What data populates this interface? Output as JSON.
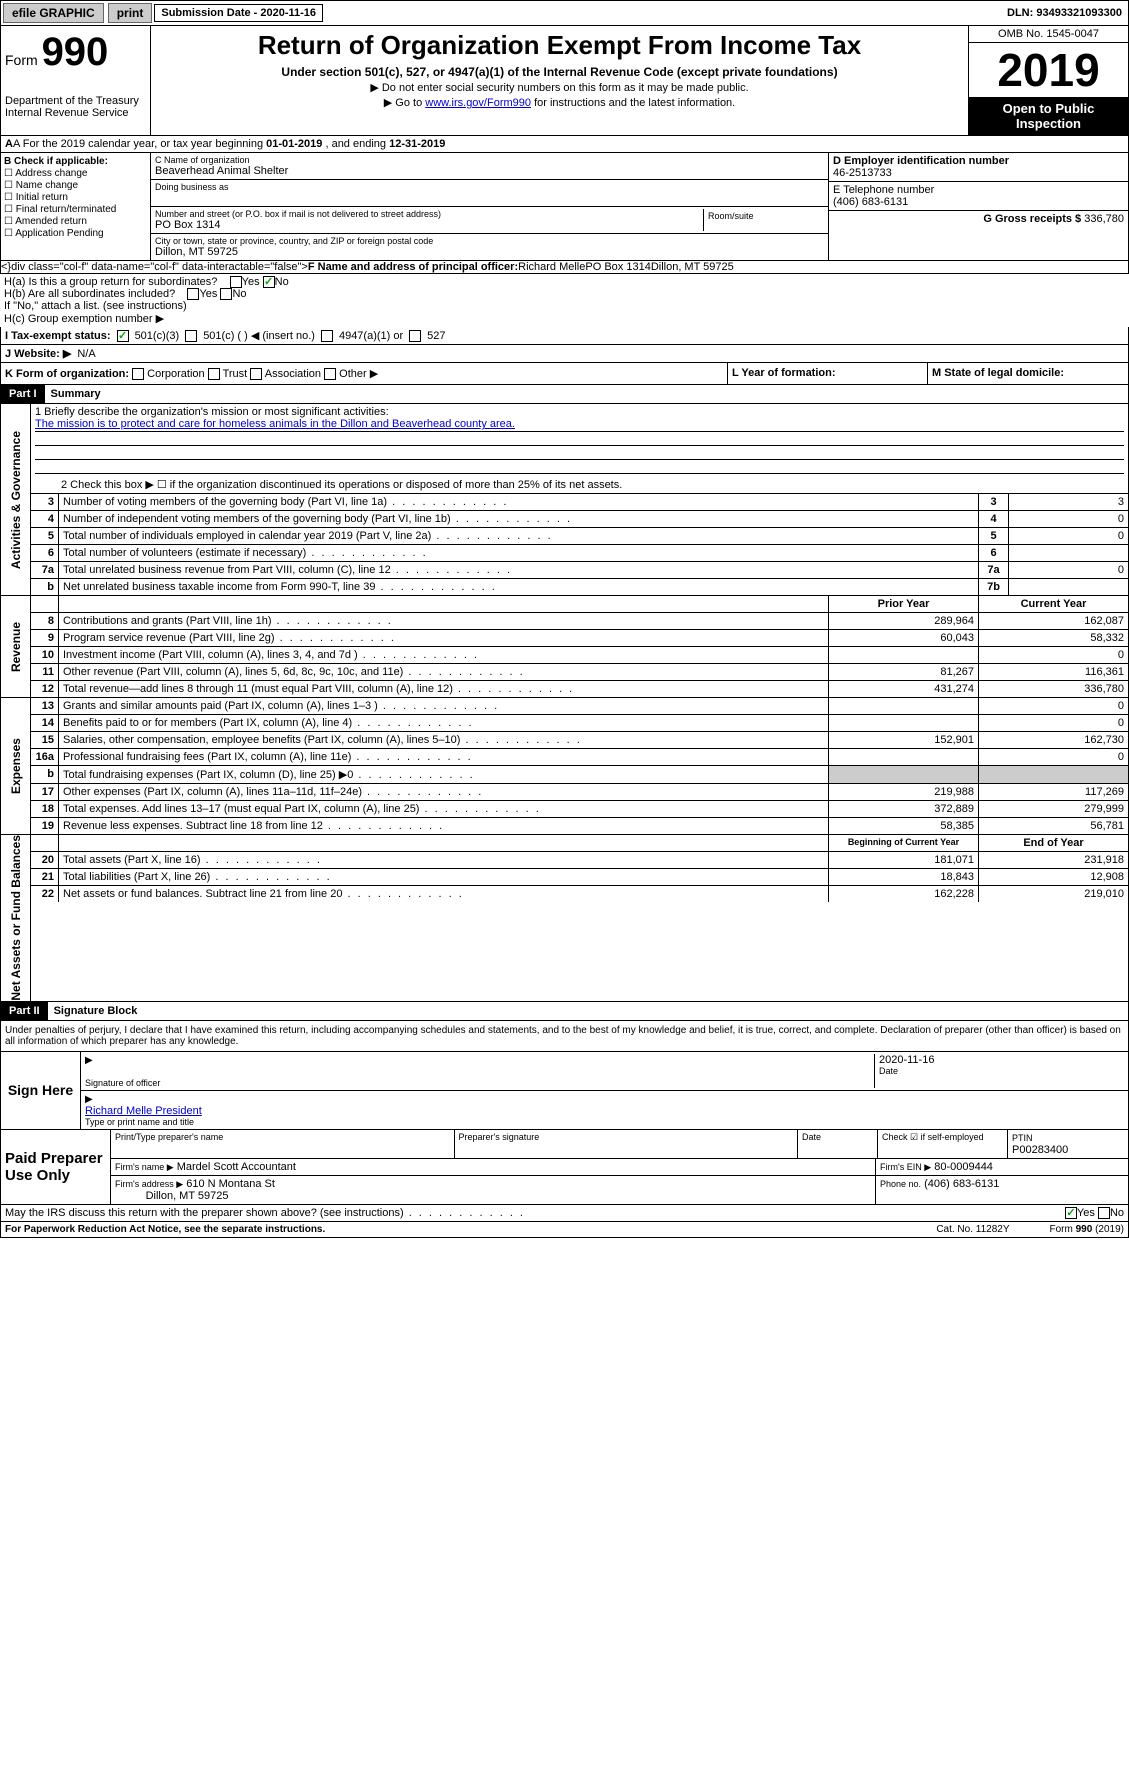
{
  "topbar": {
    "efile": "efile GRAPHIC",
    "print": "print",
    "sub_label": "Submission Date - 2020-11-16",
    "dln": "DLN: 93493321093300"
  },
  "header": {
    "form": "Form",
    "form_num": "990",
    "dept": "Department of the Treasury\nInternal Revenue Service",
    "title": "Return of Organization Exempt From Income Tax",
    "subtitle": "Under section 501(c), 527, or 4947(a)(1) of the Internal Revenue Code (except private foundations)",
    "note1": "▶ Do not enter social security numbers on this form as it may be made public.",
    "note2_a": "▶ Go to ",
    "note2_link": "www.irs.gov/Form990",
    "note2_b": " for instructions and the latest information.",
    "omb": "OMB No. 1545-0047",
    "year": "2019",
    "open": "Open to Public Inspection"
  },
  "row_a": {
    "text_a": "A For the 2019 calendar year, or tax year beginning ",
    "begin": "01-01-2019",
    "text_b": " , and ending ",
    "end": "12-31-2019"
  },
  "col_b": {
    "label": "B Check if applicable:",
    "items": [
      "Address change",
      "Name change",
      "Initial return",
      "Final return/terminated",
      "Amended return",
      "Application Pending"
    ]
  },
  "col_c": {
    "name_label": "C Name of organization",
    "name": "Beaverhead Animal Shelter",
    "dba_label": "Doing business as",
    "addr_label": "Number and street (or P.O. box if mail is not delivered to street address)",
    "addr": "PO Box 1314",
    "room_label": "Room/suite",
    "city_label": "City or town, state or province, country, and ZIP or foreign postal code",
    "city": "Dillon, MT  59725"
  },
  "col_d": {
    "ein_label": "D Employer identification number",
    "ein": "46-2513733",
    "phone_label": "E Telephone number",
    "phone": "(406) 683-6131",
    "gross_label": "G Gross receipts $ ",
    "gross": "336,780"
  },
  "col_f": {
    "label": "F Name and address of principal officer:",
    "name": "Richard Melle",
    "addr1": "PO Box 1314",
    "addr2": "Dillon, MT  59725"
  },
  "col_h": {
    "ha": "H(a) Is this a group return for subordinates?",
    "hb": "H(b) Are all subordinates included?",
    "hb_note": "If \"No,\" attach a list. (see instructions)",
    "hc": "H(c) Group exemption number ▶"
  },
  "row_i": {
    "label": "I Tax-exempt status:",
    "opts": [
      "501(c)(3)",
      "501(c) ( ) ◀ (insert no.)",
      "4947(a)(1) or",
      "527"
    ]
  },
  "row_j": {
    "label": "J Website: ▶",
    "val": "N/A"
  },
  "row_k": {
    "k": "K Form of organization:",
    "k_opts": [
      "Corporation",
      "Trust",
      "Association",
      "Other ▶"
    ],
    "l": "L Year of formation:",
    "m": "M State of legal domicile:"
  },
  "part1": {
    "hdr": "Part I",
    "title": "Summary",
    "sections": {
      "gov": "Activities & Governance",
      "rev": "Revenue",
      "exp": "Expenses",
      "net": "Net Assets or Fund Balances"
    },
    "q1_label": "1 Briefly describe the organization's mission or most significant activities:",
    "q1_val": "The mission is to protect and care for homeless animals in the Dillon and Beaverhead county area.",
    "q2": "2  Check this box ▶ ☐  if the organization discontinued its operations or disposed of more than 25% of its net assets.",
    "gov_rows": [
      {
        "n": "3",
        "d": "Number of voting members of the governing body (Part VI, line 1a)",
        "sn": "3",
        "v": "3"
      },
      {
        "n": "4",
        "d": "Number of independent voting members of the governing body (Part VI, line 1b)",
        "sn": "4",
        "v": "0"
      },
      {
        "n": "5",
        "d": "Total number of individuals employed in calendar year 2019 (Part V, line 2a)",
        "sn": "5",
        "v": "0"
      },
      {
        "n": "6",
        "d": "Total number of volunteers (estimate if necessary)",
        "sn": "6",
        "v": ""
      },
      {
        "n": "7a",
        "d": "Total unrelated business revenue from Part VIII, column (C), line 12",
        "sn": "7a",
        "v": "0"
      },
      {
        "n": "b",
        "d": "Net unrelated business taxable income from Form 990-T, line 39",
        "sn": "7b",
        "v": ""
      }
    ],
    "col_hdr1": "Prior Year",
    "col_hdr2": "Current Year",
    "rev_rows": [
      {
        "n": "8",
        "d": "Contributions and grants (Part VIII, line 1h)",
        "p": "289,964",
        "c": "162,087"
      },
      {
        "n": "9",
        "d": "Program service revenue (Part VIII, line 2g)",
        "p": "60,043",
        "c": "58,332"
      },
      {
        "n": "10",
        "d": "Investment income (Part VIII, column (A), lines 3, 4, and 7d )",
        "p": "",
        "c": "0"
      },
      {
        "n": "11",
        "d": "Other revenue (Part VIII, column (A), lines 5, 6d, 8c, 9c, 10c, and 11e)",
        "p": "81,267",
        "c": "116,361"
      },
      {
        "n": "12",
        "d": "Total revenue—add lines 8 through 11 (must equal Part VIII, column (A), line 12)",
        "p": "431,274",
        "c": "336,780"
      }
    ],
    "exp_rows": [
      {
        "n": "13",
        "d": "Grants and similar amounts paid (Part IX, column (A), lines 1–3 )",
        "p": "",
        "c": "0"
      },
      {
        "n": "14",
        "d": "Benefits paid to or for members (Part IX, column (A), line 4)",
        "p": "",
        "c": "0"
      },
      {
        "n": "15",
        "d": "Salaries, other compensation, employee benefits (Part IX, column (A), lines 5–10)",
        "p": "152,901",
        "c": "162,730"
      },
      {
        "n": "16a",
        "d": "Professional fundraising fees (Part IX, column (A), line 11e)",
        "p": "",
        "c": "0"
      },
      {
        "n": "b",
        "d": "Total fundraising expenses (Part IX, column (D), line 25) ▶0",
        "p": "—",
        "c": "—"
      },
      {
        "n": "17",
        "d": "Other expenses (Part IX, column (A), lines 11a–11d, 11f–24e)",
        "p": "219,988",
        "c": "117,269"
      },
      {
        "n": "18",
        "d": "Total expenses. Add lines 13–17 (must equal Part IX, column (A), line 25)",
        "p": "372,889",
        "c": "279,999"
      },
      {
        "n": "19",
        "d": "Revenue less expenses. Subtract line 18 from line 12",
        "p": "58,385",
        "c": "56,781"
      }
    ],
    "net_hdr1": "Beginning of Current Year",
    "net_hdr2": "End of Year",
    "net_rows": [
      {
        "n": "20",
        "d": "Total assets (Part X, line 16)",
        "p": "181,071",
        "c": "231,918"
      },
      {
        "n": "21",
        "d": "Total liabilities (Part X, line 26)",
        "p": "18,843",
        "c": "12,908"
      },
      {
        "n": "22",
        "d": "Net assets or fund balances. Subtract line 21 from line 20",
        "p": "162,228",
        "c": "219,010"
      }
    ]
  },
  "part2": {
    "hdr": "Part II",
    "title": "Signature Block",
    "perjury": "Under penalties of perjury, I declare that I have examined this return, including accompanying schedules and statements, and to the best of my knowledge and belief, it is true, correct, and complete. Declaration of preparer (other than officer) is based on all information of which preparer has any knowledge.",
    "sign_here": "Sign Here",
    "sig_officer": "Signature of officer",
    "sig_date": "2020-11-16",
    "date_label": "Date",
    "officer_name": "Richard Melle  President",
    "type_name": "Type or print name and title",
    "paid": "Paid Preparer Use Only",
    "prep_name_label": "Print/Type preparer's name",
    "prep_sig_label": "Preparer's signature",
    "prep_date_label": "Date",
    "check_if": "Check ☑ if self-employed",
    "ptin_label": "PTIN",
    "ptin": "P00283400",
    "firm_name_label": "Firm's name ▶",
    "firm_name": "Mardel Scott Accountant",
    "firm_ein_label": "Firm's EIN ▶",
    "firm_ein": "80-0009444",
    "firm_addr_label": "Firm's address ▶",
    "firm_addr": "610 N Montana St",
    "firm_city": "Dillon, MT  59725",
    "firm_phone_label": "Phone no.",
    "firm_phone": "(406) 683-6131",
    "discuss": "May the IRS discuss this return with the preparer shown above? (see instructions)"
  },
  "footer": {
    "left": "For Paperwork Reduction Act Notice, see the separate instructions.",
    "mid": "Cat. No. 11282Y",
    "right": "Form 990 (2019)"
  }
}
